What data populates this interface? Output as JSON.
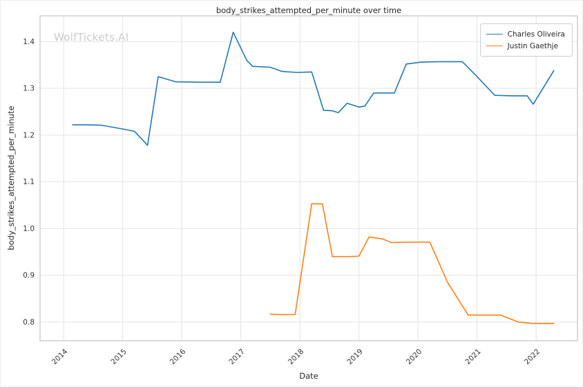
{
  "watermark": "WolfTickets.AI",
  "chart_data": {
    "type": "line",
    "title": "body_strikes_attempted_per_minute over time",
    "xlabel": "Date",
    "ylabel": "body_strikes_attempted_per_minute",
    "grid": true,
    "legend_position": "upper right",
    "xlim": [
      2013.6,
      2022.7
    ],
    "ylim": [
      0.76,
      1.455
    ],
    "x_ticks": [
      2014,
      2015,
      2016,
      2017,
      2018,
      2019,
      2020,
      2021,
      2022
    ],
    "y_ticks": [
      0.8,
      0.9,
      1.0,
      1.1,
      1.2,
      1.3,
      1.4
    ],
    "colors": {
      "grid": "#e2e2e2",
      "spine": "#b7b7b7",
      "tick_text": "#333333"
    },
    "series": [
      {
        "name": "Charles Oliveira",
        "color": "#1f77b4",
        "points": [
          [
            2014.15,
            1.222
          ],
          [
            2014.4,
            1.222
          ],
          [
            2014.65,
            1.221
          ],
          [
            2015.0,
            1.213
          ],
          [
            2015.2,
            1.208
          ],
          [
            2015.42,
            1.178
          ],
          [
            2015.6,
            1.325
          ],
          [
            2015.9,
            1.314
          ],
          [
            2016.3,
            1.313
          ],
          [
            2016.65,
            1.313
          ],
          [
            2016.87,
            1.42
          ],
          [
            2017.1,
            1.36
          ],
          [
            2017.2,
            1.347
          ],
          [
            2017.5,
            1.345
          ],
          [
            2017.7,
            1.336
          ],
          [
            2017.95,
            1.334
          ],
          [
            2018.2,
            1.335
          ],
          [
            2018.4,
            1.253
          ],
          [
            2018.55,
            1.252
          ],
          [
            2018.65,
            1.248
          ],
          [
            2018.8,
            1.268
          ],
          [
            2019.0,
            1.26
          ],
          [
            2019.1,
            1.262
          ],
          [
            2019.25,
            1.29
          ],
          [
            2019.6,
            1.29
          ],
          [
            2019.8,
            1.352
          ],
          [
            2020.05,
            1.356
          ],
          [
            2020.4,
            1.357
          ],
          [
            2020.75,
            1.357
          ],
          [
            2021.0,
            1.325
          ],
          [
            2021.3,
            1.285
          ],
          [
            2021.6,
            1.284
          ],
          [
            2021.85,
            1.284
          ],
          [
            2021.95,
            1.266
          ],
          [
            2022.3,
            1.338
          ]
        ]
      },
      {
        "name": "Justin Gaethje",
        "color": "#ff7f0e",
        "points": [
          [
            2017.5,
            0.817
          ],
          [
            2017.75,
            0.816
          ],
          [
            2017.92,
            0.816
          ],
          [
            2018.2,
            1.053
          ],
          [
            2018.38,
            1.053
          ],
          [
            2018.55,
            0.94
          ],
          [
            2018.8,
            0.94
          ],
          [
            2019.0,
            0.941
          ],
          [
            2019.17,
            0.982
          ],
          [
            2019.4,
            0.978
          ],
          [
            2019.55,
            0.97
          ],
          [
            2019.8,
            0.971
          ],
          [
            2020.2,
            0.971
          ],
          [
            2020.5,
            0.885
          ],
          [
            2020.85,
            0.815
          ],
          [
            2021.1,
            0.815
          ],
          [
            2021.4,
            0.815
          ],
          [
            2021.7,
            0.8
          ],
          [
            2021.95,
            0.797
          ],
          [
            2022.3,
            0.797
          ]
        ]
      }
    ]
  }
}
